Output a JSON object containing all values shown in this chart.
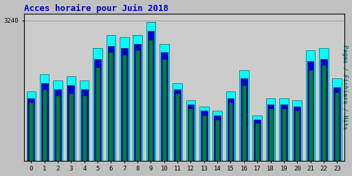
{
  "title": "Acces horaire pour Juin 2018",
  "ylabel": "Pages / Fichiers / Hits",
  "hours": [
    0,
    1,
    2,
    3,
    4,
    5,
    6,
    7,
    8,
    9,
    10,
    11,
    12,
    13,
    14,
    15,
    16,
    17,
    18,
    19,
    20,
    21,
    22,
    23
  ],
  "hits": [
    1600,
    2000,
    1850,
    1950,
    1850,
    2600,
    2900,
    2850,
    2900,
    3200,
    2700,
    1800,
    1400,
    1250,
    1150,
    1600,
    2100,
    1050,
    1450,
    1450,
    1400,
    2550,
    2600,
    1900
  ],
  "fichiers": [
    1450,
    1800,
    1650,
    1750,
    1650,
    2350,
    2650,
    2600,
    2700,
    3000,
    2500,
    1650,
    1300,
    1150,
    1050,
    1450,
    1900,
    950,
    1300,
    1300,
    1250,
    2300,
    2350,
    1700
  ],
  "pages": [
    1350,
    1650,
    1500,
    1550,
    1500,
    2150,
    2500,
    2450,
    2550,
    2800,
    2350,
    1550,
    1200,
    1050,
    950,
    1350,
    1750,
    870,
    1200,
    1200,
    1150,
    2100,
    2200,
    1580
  ],
  "color_pages": "#008040",
  "color_fichiers": "#0000cc",
  "color_hits": "#00ffff",
  "bg_color": "#c0c0c0",
  "plot_bg": "#cccccc",
  "title_color": "#0000cc",
  "ylabel_color": "#008080",
  "ylim": [
    0,
    3400
  ],
  "bar_width": 0.7
}
